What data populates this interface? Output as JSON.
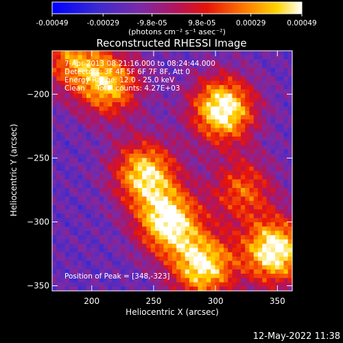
{
  "chart_data": {
    "type": "heatmap",
    "title": "Reconstructed RHESSI Image",
    "xlabel": "Heliocentric X (arcsec)",
    "ylabel": "Heliocentric Y (arcsec)",
    "xlim": [
      168,
      362
    ],
    "ylim": [
      -354,
      -166
    ],
    "xticks": [
      200,
      250,
      300,
      350
    ],
    "yticks": [
      -200,
      -250,
      -300,
      -350
    ],
    "colorbar": {
      "range": [
        -0.00049,
        0.00049
      ],
      "tick_values": [
        -0.00049,
        -0.00029,
        -9.8e-05,
        9.8e-05,
        0.00029,
        0.00049
      ],
      "tick_labels": [
        "-0.00049",
        "-0.00029",
        "-9.8e-05",
        "9.8e-05",
        "0.00029",
        "0.00049"
      ],
      "unit_label": "(photons cm⁻² s⁻¹ asec⁻²)",
      "colormap": "blue-purple-red-orange-yellow-white"
    },
    "annotations": [
      "7-Apr-2013 08:21:16.000 to 08:24:44.000",
      "Detectors: 3F 4F 5F 6F 7F 8F, Att 0",
      "Energy Range: 12.0 - 25.0 keV",
      "Clean     Total counts: 4.27E+03",
      "Position of Peak = [348,-323]"
    ],
    "sources": [
      {
        "x": 306,
        "y": -212,
        "intensity": 1.0
      },
      {
        "x": 214,
        "y": -193,
        "intensity": 0.75
      },
      {
        "x": 243,
        "y": -262,
        "intensity": 0.85
      },
      {
        "x": 262,
        "y": -300,
        "intensity": 0.95
      },
      {
        "x": 290,
        "y": -335,
        "intensity": 0.9
      },
      {
        "x": 348,
        "y": -323,
        "intensity": 1.0
      },
      {
        "x": 322,
        "y": -275,
        "intensity": 0.55
      },
      {
        "x": 184,
        "y": -172,
        "intensity": 0.6
      }
    ],
    "peak": {
      "x": 348,
      "y": -323
    },
    "timestamp": "12-May-2022 11:38"
  }
}
